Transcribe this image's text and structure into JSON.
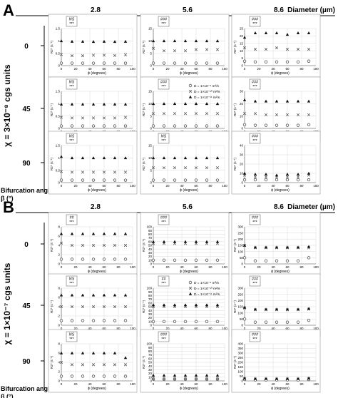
{
  "panel_labels": [
    "A",
    "B"
  ],
  "header": {
    "diameters": [
      "2.8",
      "5.6",
      "8.6"
    ],
    "diameter_label": "Diameter (µm)"
  },
  "row_axis": {
    "title": "Bifurcation angle β (°)",
    "angles": [
      "0",
      "45",
      "90"
    ]
  },
  "chi_labels": [
    "χ = 3×10⁻⁸ cgs units",
    "χ = 1×10⁻⁷ cgs units"
  ],
  "subplot_axis": {
    "xlabel": "ϕ (degrees)",
    "ylabel": "R2* (s⁻¹)",
    "x_ticks": [
      "0",
      "20",
      "40",
      "60",
      "80",
      "100"
    ]
  },
  "legend": [
    {
      "marker": "circle",
      "label": "D = 1×10⁻⁹ m²/s"
    },
    {
      "marker": "cross",
      "label": "D = 1×10⁻¹⁰ m²/s"
    },
    {
      "marker": "triangle",
      "label": "D = 1×10⁻¹¹ m²/s"
    }
  ],
  "chart_data": [
    {
      "type": "scatter",
      "panel": "A",
      "angle": "0",
      "diameter": "2.8",
      "ylim": [
        0,
        1.5
      ],
      "yticks": [
        0,
        0.5,
        1,
        1.5
      ],
      "sig": [
        "NS",
        "***"
      ],
      "x": [
        0,
        15,
        30,
        45,
        60,
        75,
        90
      ],
      "series": [
        {
          "values": [
            0.1,
            0.1,
            0.1,
            0.1,
            0.1,
            0.1,
            0.1
          ]
        },
        {
          "values": [
            0.45,
            0.4,
            0.4,
            0.42,
            0.42,
            0.41,
            0.44
          ]
        },
        {
          "values": [
            1.0,
            0.98,
            0.98,
            0.97,
            0.98,
            0.97,
            0.98
          ]
        }
      ]
    },
    {
      "type": "scatter",
      "panel": "A",
      "angle": "0",
      "diameter": "5.6",
      "ylim": [
        0,
        15
      ],
      "yticks": [
        0,
        5,
        10,
        15
      ],
      "sig": [
        "###",
        "***"
      ],
      "x": [
        0,
        15,
        30,
        45,
        60,
        75,
        90
      ],
      "series": [
        {
          "values": [
            1,
            1,
            1,
            1,
            1,
            1,
            1
          ]
        },
        {
          "values": [
            7,
            6,
            6,
            6,
            6.5,
            6.5,
            6.5
          ]
        },
        {
          "values": [
            10,
            10,
            10,
            10,
            10,
            10,
            10
          ]
        }
      ]
    },
    {
      "type": "scatter",
      "panel": "A",
      "angle": "0",
      "diameter": "8.6",
      "ylim": [
        0,
        25
      ],
      "yticks": [
        0,
        5,
        10,
        15,
        20,
        25
      ],
      "sig": [
        "###",
        "***"
      ],
      "x": [
        0,
        15,
        30,
        45,
        60,
        75,
        90
      ],
      "series": [
        {
          "values": [
            3,
            2.5,
            2.5,
            2.5,
            2.5,
            2.5,
            3
          ]
        },
        {
          "values": [
            12,
            11,
            11,
            12,
            11,
            11,
            11
          ]
        },
        {
          "values": [
            19,
            22,
            22,
            22,
            21,
            22,
            22
          ]
        }
      ]
    },
    {
      "type": "scatter",
      "panel": "A",
      "angle": "45",
      "diameter": "2.8",
      "ylim": [
        0,
        1.5
      ],
      "yticks": [
        0,
        0.5,
        1,
        1.5
      ],
      "sig": [
        "NS",
        "***"
      ],
      "x": [
        0,
        15,
        30,
        45,
        60,
        75,
        90
      ],
      "series": [
        {
          "values": [
            0.1,
            0.1,
            0.1,
            0.1,
            0.1,
            0.1,
            0.1
          ]
        },
        {
          "values": [
            0.45,
            0.42,
            0.42,
            0.42,
            0.42,
            0.42,
            0.45
          ]
        },
        {
          "values": [
            0.98,
            0.98,
            0.98,
            0.98,
            0.98,
            0.98,
            0.98
          ]
        }
      ]
    },
    {
      "type": "scatter",
      "panel": "A",
      "angle": "45",
      "diameter": "5.6",
      "ylim": [
        0,
        15
      ],
      "yticks": [
        0,
        5,
        10,
        15
      ],
      "sig": [
        "###",
        "***"
      ],
      "x": [
        0,
        15,
        30,
        45,
        60,
        75,
        90
      ],
      "series": [
        {
          "values": [
            1,
            1,
            1,
            1,
            1,
            1,
            1
          ]
        },
        {
          "values": [
            6,
            6,
            6,
            6,
            6,
            6,
            6
          ]
        },
        {
          "values": [
            10,
            10,
            10,
            10,
            10,
            10,
            10
          ]
        }
      ]
    },
    {
      "type": "scatter",
      "panel": "A",
      "angle": "45",
      "diameter": "8.6",
      "ylim": [
        0,
        30
      ],
      "yticks": [
        0,
        10,
        20,
        30
      ],
      "sig": [
        "###",
        "***"
      ],
      "x": [
        0,
        15,
        30,
        45,
        60,
        75,
        90
      ],
      "series": [
        {
          "values": [
            3,
            2.5,
            2.5,
            2.5,
            2.5,
            2.5,
            3
          ]
        },
        {
          "values": [
            12,
            12,
            11,
            11,
            11,
            11,
            11
          ]
        },
        {
          "values": [
            23,
            22,
            22,
            22,
            22,
            22,
            22
          ]
        }
      ]
    },
    {
      "type": "scatter",
      "panel": "A",
      "angle": "90",
      "diameter": "2.8",
      "ylim": [
        0,
        1.5
      ],
      "yticks": [
        0,
        0.5,
        1,
        1.5
      ],
      "sig": [
        "NS",
        "***"
      ],
      "x": [
        0,
        15,
        30,
        45,
        60,
        75,
        90
      ],
      "series": [
        {
          "values": [
            0.1,
            0.1,
            0.1,
            0.1,
            0.1,
            0.1,
            0.1
          ]
        },
        {
          "values": [
            0.45,
            0.42,
            0.42,
            0.42,
            0.42,
            0.42,
            0.42
          ]
        },
        {
          "values": [
            1.05,
            1.0,
            1.0,
            1.0,
            1.0,
            1.0,
            1.0
          ]
        }
      ]
    },
    {
      "type": "scatter",
      "panel": "A",
      "angle": "90",
      "diameter": "5.6",
      "ylim": [
        0,
        15
      ],
      "yticks": [
        0,
        5,
        10,
        15
      ],
      "sig": [
        "NS",
        "***"
      ],
      "x": [
        0,
        15,
        30,
        45,
        60,
        75,
        90
      ],
      "series": [
        {
          "values": [
            1,
            1,
            1,
            1,
            1,
            1,
            1
          ]
        },
        {
          "values": [
            6,
            6,
            6,
            6,
            6,
            6,
            6
          ]
        },
        {
          "values": [
            10,
            10,
            10,
            10,
            10,
            10,
            10
          ]
        }
      ]
    },
    {
      "type": "scatter",
      "panel": "A",
      "angle": "90",
      "diameter": "8.6",
      "ylim": [
        0,
        40
      ],
      "yticks": [
        0,
        10,
        20,
        30,
        40
      ],
      "sig": [
        "###",
        "***"
      ],
      "x": [
        0,
        15,
        30,
        45,
        60,
        75,
        90
      ],
      "series": [
        {
          "values": [
            3,
            3,
            3,
            3,
            3,
            3,
            3
          ]
        },
        {
          "values": [
            8,
            6,
            6,
            6,
            6,
            6,
            8
          ]
        },
        {
          "values": [
            10,
            9,
            9,
            8,
            9,
            9,
            10
          ]
        }
      ]
    },
    {
      "type": "scatter",
      "panel": "B",
      "angle": "0",
      "diameter": "2.8",
      "ylim": [
        0,
        8
      ],
      "yticks": [
        0,
        2,
        4,
        6,
        8
      ],
      "sig": [
        "##",
        "***"
      ],
      "x": [
        0,
        15,
        30,
        45,
        60,
        75,
        90
      ],
      "series": [
        {
          "values": [
            1,
            1,
            1,
            1,
            1,
            1,
            1
          ]
        },
        {
          "values": [
            4.5,
            4,
            4,
            4,
            4,
            4,
            4
          ]
        },
        {
          "values": [
            6.5,
            6.5,
            6.5,
            6.5,
            6.5,
            6.5,
            6.5
          ]
        }
      ]
    },
    {
      "type": "scatter",
      "panel": "B",
      "angle": "0",
      "diameter": "5.6",
      "ylim": [
        0,
        100
      ],
      "yticks": [
        0,
        10,
        20,
        30,
        40,
        50,
        60,
        70,
        80,
        90,
        100
      ],
      "sig": [
        "###",
        "***"
      ],
      "x": [
        0,
        15,
        30,
        45,
        60,
        75,
        90
      ],
      "series": [
        {
          "values": [
            10,
            10,
            10,
            10,
            10,
            10,
            10
          ]
        },
        {
          "values": [
            55,
            55,
            55,
            55,
            55,
            55,
            55
          ]
        },
        {
          "values": [
            60,
            60,
            60,
            60,
            60,
            60,
            60
          ]
        }
      ]
    },
    {
      "type": "scatter",
      "panel": "B",
      "angle": "0",
      "diameter": "8.6",
      "ylim": [
        0,
        300
      ],
      "yticks": [
        0,
        50,
        100,
        150,
        200,
        250,
        300
      ],
      "sig": [
        "###",
        "***"
      ],
      "x": [
        0,
        15,
        30,
        45,
        60,
        75,
        90
      ],
      "series": [
        {
          "values": [
            50,
            25,
            25,
            25,
            25,
            25,
            50
          ]
        },
        {
          "values": [
            150,
            130,
            130,
            130,
            130,
            130,
            130
          ]
        },
        {
          "values": [
            150,
            135,
            135,
            135,
            135,
            135,
            140
          ]
        }
      ]
    },
    {
      "type": "scatter",
      "panel": "B",
      "angle": "45",
      "diameter": "2.8",
      "ylim": [
        0,
        8
      ],
      "yticks": [
        0,
        2,
        4,
        6,
        8
      ],
      "sig": [
        "NS",
        "***"
      ],
      "x": [
        0,
        15,
        30,
        45,
        60,
        75,
        90
      ],
      "series": [
        {
          "values": [
            1,
            1,
            1,
            1,
            1,
            1,
            1
          ]
        },
        {
          "values": [
            4,
            4,
            4,
            4,
            4,
            4,
            4
          ]
        },
        {
          "values": [
            6.5,
            6.5,
            6.5,
            6.5,
            6.5,
            6.5,
            6.5
          ]
        }
      ]
    },
    {
      "type": "scatter",
      "panel": "B",
      "angle": "45",
      "diameter": "5.6",
      "ylim": [
        0,
        100
      ],
      "yticks": [
        0,
        10,
        20,
        30,
        40,
        50,
        60,
        70,
        80,
        90,
        100
      ],
      "sig": [
        "##",
        "***"
      ],
      "x": [
        0,
        15,
        30,
        45,
        60,
        75,
        90
      ],
      "series": [
        {
          "values": [
            10,
            10,
            10,
            10,
            10,
            10,
            10
          ]
        },
        {
          "values": [
            50,
            50,
            50,
            50,
            50,
            50,
            50
          ]
        },
        {
          "values": [
            55,
            55,
            55,
            55,
            55,
            55,
            55
          ]
        }
      ]
    },
    {
      "type": "scatter",
      "panel": "B",
      "angle": "45",
      "diameter": "8.6",
      "ylim": [
        0,
        300
      ],
      "yticks": [
        0,
        50,
        100,
        150,
        200,
        250,
        300
      ],
      "sig": [
        "###",
        "***"
      ],
      "x": [
        0,
        15,
        30,
        45,
        60,
        75,
        90
      ],
      "series": [
        {
          "values": [
            50,
            25,
            25,
            25,
            25,
            25,
            40
          ]
        },
        {
          "values": [
            140,
            125,
            125,
            125,
            125,
            125,
            130
          ]
        },
        {
          "values": [
            145,
            130,
            130,
            130,
            130,
            130,
            135
          ]
        }
      ]
    },
    {
      "type": "scatter",
      "panel": "B",
      "angle": "90",
      "diameter": "2.8",
      "ylim": [
        0,
        8
      ],
      "yticks": [
        0,
        2,
        4,
        6,
        8
      ],
      "sig": [
        "NS",
        "***"
      ],
      "x": [
        0,
        15,
        30,
        45,
        60,
        75,
        90
      ],
      "series": [
        {
          "values": [
            1,
            1,
            1,
            1,
            1,
            1,
            1
          ]
        },
        {
          "values": [
            4,
            3.5,
            3.5,
            3.5,
            3.5,
            3.5,
            3.5
          ]
        },
        {
          "values": [
            6,
            6,
            6,
            6,
            6,
            6,
            5
          ]
        }
      ]
    },
    {
      "type": "scatter",
      "panel": "B",
      "angle": "90",
      "diameter": "5.6",
      "ylim": [
        0,
        100
      ],
      "yticks": [
        0,
        10,
        20,
        30,
        40,
        50,
        60,
        70,
        80,
        90,
        100
      ],
      "sig": [
        "###",
        "***"
      ],
      "x": [
        0,
        15,
        30,
        45,
        60,
        75,
        90
      ],
      "series": [
        {
          "values": [
            5,
            5,
            5,
            5,
            5,
            5,
            5
          ]
        },
        {
          "values": [
            5,
            5,
            5,
            5,
            5,
            5,
            5
          ]
        },
        {
          "values": [
            15,
            15,
            15,
            15,
            15,
            15,
            15
          ]
        }
      ]
    },
    {
      "type": "scatter",
      "panel": "B",
      "angle": "90",
      "diameter": "8.6",
      "ylim": [
        0,
        400
      ],
      "yticks": [
        0,
        50,
        100,
        150,
        200,
        250,
        300,
        350,
        400
      ],
      "sig": [
        "###",
        "***"
      ],
      "x": [
        0,
        15,
        30,
        45,
        60,
        75,
        90
      ],
      "series": [
        {
          "values": [
            15,
            10,
            10,
            10,
            10,
            10,
            15
          ]
        },
        {
          "values": [
            25,
            20,
            20,
            20,
            20,
            20,
            25
          ]
        },
        {
          "values": [
            30,
            25,
            25,
            25,
            25,
            25,
            30
          ]
        }
      ]
    }
  ]
}
